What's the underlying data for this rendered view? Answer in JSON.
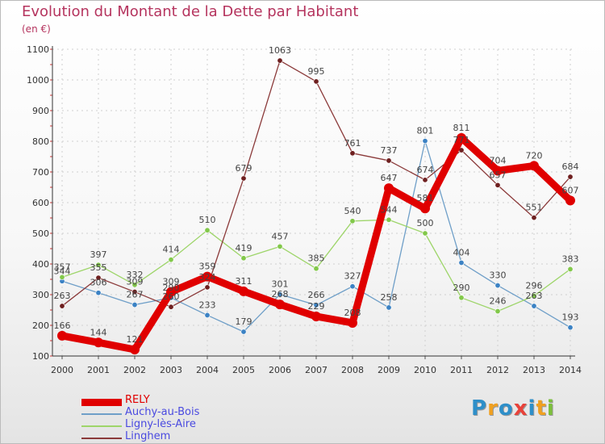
{
  "title": "Evolution du Montant de la Dette par Habitant",
  "subtitle": "(en €)",
  "brand": {
    "letters": [
      "P",
      "r",
      "o",
      "x",
      "i",
      "t",
      "i"
    ],
    "colors": [
      "#2e8fc9",
      "#f0a020",
      "#2e8fc9",
      "#e8423a",
      "#2e8fc9",
      "#f0a020",
      "#7bbf3a"
    ]
  },
  "chart_data": {
    "type": "line",
    "title": "Evolution du Montant de la Dette par Habitant",
    "subtitle": "(en €)",
    "xlabel": "",
    "ylabel": "",
    "x": [
      "2000",
      "2001",
      "2002",
      "2003",
      "2004",
      "2005",
      "2006",
      "2007",
      "2008",
      "2009",
      "2010",
      "2011",
      "2012",
      "2013",
      "2014"
    ],
    "ylim": [
      100,
      1100
    ],
    "yticks": [
      "100",
      "200",
      "300",
      "400",
      "500",
      "600",
      "700",
      "800",
      "900",
      "1000",
      "1100"
    ],
    "grid": "vertical dashed + horizontal dashed",
    "legend": "bottom-left",
    "series": [
      {
        "name": "RELY",
        "color": "#e00000",
        "emphasis": "thick",
        "values": [
          166,
          144,
          121,
          309,
          359,
          311,
          268,
          229,
          208,
          647,
          581,
          811,
          704,
          720,
          607
        ],
        "labels": [
          "166",
          "144",
          "121",
          "309",
          "359",
          "311",
          "268",
          "229",
          "208",
          "647",
          "581",
          "811",
          "704",
          "720",
          "607"
        ]
      },
      {
        "name": "Auchy-au-Bois",
        "color": "#6f9fc8",
        "marker": "#3b82c4",
        "values": [
          344,
          306,
          267,
          290,
          233,
          179,
          301,
          266,
          327,
          258,
          801,
          404,
          330,
          263,
          193
        ],
        "labels": [
          "344",
          "306",
          "267",
          "290",
          "233",
          "179",
          "301",
          "266",
          "327",
          "258",
          "801",
          "404",
          "330",
          "263",
          "193"
        ]
      },
      {
        "name": "Ligny-lès-Aire",
        "color": "#9ed56a",
        "marker": "#82c84a",
        "values": [
          357,
          397,
          332,
          414,
          510,
          419,
          457,
          385,
          540,
          544,
          500,
          290,
          246,
          296,
          383
        ],
        "labels": [
          "357",
          "397",
          "332",
          "414",
          "510",
          "419",
          "457",
          "385",
          "540",
          "544",
          "500",
          "290",
          "246",
          "296",
          "383"
        ]
      },
      {
        "name": "Linghem",
        "color": "#8b3a3a",
        "marker": "#6e1f1f",
        "values": [
          263,
          355,
          309,
          260,
          324,
          679,
          1063,
          995,
          761,
          737,
          674,
          771,
          657,
          551,
          684
        ],
        "labels": [
          "263",
          "355",
          "309",
          "260",
          "324",
          "679",
          "1063",
          "995",
          "761",
          "737",
          "674",
          "771",
          "657",
          "551",
          "684"
        ]
      }
    ]
  }
}
